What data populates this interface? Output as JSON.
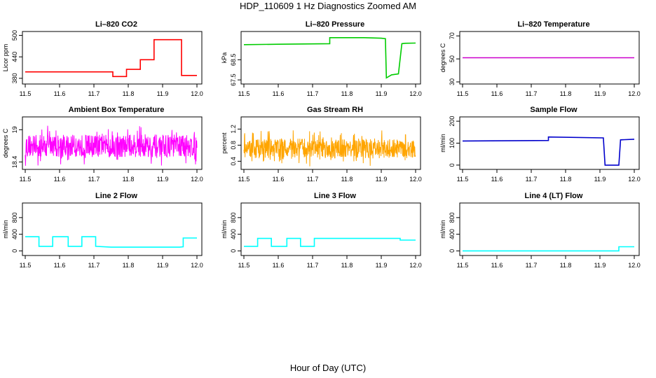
{
  "title": "HDP_110609  1 Hz Diagnostics Zoomed AM",
  "xlabel": "Hour of Day (UTC)",
  "chart_data": [
    {
      "type": "line",
      "title": "Li–820 CO2",
      "ylabel": "Licor ppm",
      "color": "#ff0000",
      "xlim": [
        11.5,
        12.0
      ],
      "ylim": [
        370,
        505
      ],
      "xticks": [
        "11.5",
        "11.6",
        "11.7",
        "11.8",
        "11.9",
        "12.0"
      ],
      "yticks": [
        380,
        440,
        500
      ],
      "series": [
        {
          "x": [
            11.5,
            11.755,
            11.755,
            11.795,
            11.795,
            11.835,
            11.835,
            11.875,
            11.875,
            11.955,
            11.955,
            12.0
          ],
          "values": [
            398,
            398,
            385,
            385,
            405,
            405,
            432,
            432,
            488,
            488,
            388,
            388
          ]
        }
      ]
    },
    {
      "type": "line",
      "title": "Li–820 Pressure",
      "ylabel": "kPa",
      "color": "#00cc00",
      "xlim": [
        11.5,
        12.0
      ],
      "ylim": [
        67.4,
        69.8
      ],
      "xticks": [
        "11.5",
        "11.6",
        "11.7",
        "11.8",
        "11.9",
        "12.0"
      ],
      "yticks": [
        67.5,
        68.5
      ],
      "series": [
        {
          "x": [
            11.5,
            11.6,
            11.75,
            11.75,
            11.85,
            11.9,
            11.912,
            11.915,
            11.93,
            11.95,
            11.96,
            11.97,
            12.0
          ],
          "values": [
            69.25,
            69.27,
            69.3,
            69.6,
            69.6,
            69.57,
            69.55,
            67.6,
            67.75,
            67.8,
            69.3,
            69.32,
            69.33
          ]
        }
      ]
    },
    {
      "type": "line",
      "title": "Li–820 Temperature",
      "ylabel": "degrees C",
      "color": "#cc00cc",
      "xlim": [
        11.5,
        12.0
      ],
      "ylim": [
        30,
        72
      ],
      "xticks": [
        "11.5",
        "11.6",
        "11.7",
        "11.8",
        "11.9",
        "12.0"
      ],
      "yticks": [
        30,
        50,
        70
      ],
      "series": [
        {
          "x": [
            11.5,
            12.0
          ],
          "values": [
            51,
            51
          ]
        }
      ]
    },
    {
      "type": "line",
      "title": "Ambient Box Temperature",
      "ylabel": "degrees C",
      "color": "#ff00ff",
      "noisy": true,
      "noise_center": 18.7,
      "noise_amp": 0.38,
      "xlim": [
        11.5,
        12.0
      ],
      "ylim": [
        18.3,
        19.2
      ],
      "xticks": [
        "11.5",
        "11.6",
        "11.7",
        "11.8",
        "11.9",
        "12.0"
      ],
      "yticks": [
        18.4,
        19.0
      ]
    },
    {
      "type": "line",
      "title": "Gas Stream RH",
      "ylabel": "percent",
      "color": "#ffa500",
      "noisy": true,
      "noise_center": 0.72,
      "noise_amp": 0.45,
      "xlim": [
        11.5,
        12.0
      ],
      "ylim": [
        0.25,
        1.45
      ],
      "xticks": [
        "11.5",
        "11.6",
        "11.7",
        "11.8",
        "11.9",
        "12.0"
      ],
      "yticks": [
        0.4,
        0.8,
        1.2
      ]
    },
    {
      "type": "line",
      "title": "Sample Flow",
      "ylabel": "ml/min",
      "color": "#0000cc",
      "xlim": [
        11.5,
        12.0
      ],
      "ylim": [
        -10,
        210
      ],
      "xticks": [
        "11.5",
        "11.6",
        "11.7",
        "11.8",
        "11.9",
        "12.0"
      ],
      "yticks": [
        0,
        100,
        200
      ],
      "series": [
        {
          "x": [
            11.5,
            11.75,
            11.75,
            11.91,
            11.915,
            11.955,
            11.96,
            12.0
          ],
          "values": [
            110,
            112,
            128,
            124,
            0,
            0,
            115,
            118
          ]
        }
      ]
    },
    {
      "type": "line",
      "title": "Line 2 Flow",
      "ylabel": "ml/min",
      "color": "#00ffff",
      "xlim": [
        11.5,
        12.0
      ],
      "ylim": [
        -60,
        1100
      ],
      "xticks": [
        "11.5",
        "11.6",
        "11.7",
        "11.8",
        "11.9",
        "12.0"
      ],
      "yticks": [
        0,
        400,
        800
      ],
      "series": [
        {
          "x": [
            11.5,
            11.54,
            11.54,
            11.58,
            11.58,
            11.625,
            11.625,
            11.665,
            11.665,
            11.705,
            11.705,
            11.75,
            11.95,
            11.96,
            11.96,
            12.0
          ],
          "values": [
            340,
            340,
            110,
            110,
            340,
            340,
            110,
            110,
            340,
            340,
            110,
            90,
            90,
            100,
            310,
            310
          ]
        }
      ]
    },
    {
      "type": "line",
      "title": "Line 3 Flow",
      "ylabel": "ml/min",
      "color": "#00ffff",
      "xlim": [
        11.5,
        12.0
      ],
      "ylim": [
        -60,
        1100
      ],
      "xticks": [
        "11.5",
        "11.6",
        "11.7",
        "11.8",
        "11.9",
        "12.0"
      ],
      "yticks": [
        0,
        400,
        800
      ],
      "series": [
        {
          "x": [
            11.5,
            11.54,
            11.54,
            11.58,
            11.58,
            11.625,
            11.625,
            11.665,
            11.665,
            11.705,
            11.705,
            11.955,
            11.955,
            12.0
          ],
          "values": [
            110,
            110,
            300,
            300,
            110,
            110,
            300,
            300,
            110,
            110,
            300,
            300,
            260,
            260
          ]
        }
      ]
    },
    {
      "type": "line",
      "title": "Line 4 (LT) Flow",
      "ylabel": "ml/min",
      "color": "#00ffff",
      "xlim": [
        11.5,
        12.0
      ],
      "ylim": [
        -60,
        1100
      ],
      "xticks": [
        "11.5",
        "11.6",
        "11.7",
        "11.8",
        "11.9",
        "12.0"
      ],
      "yticks": [
        0,
        400,
        800
      ],
      "series": [
        {
          "x": [
            11.5,
            11.955,
            11.955,
            12.0
          ],
          "values": [
            0,
            0,
            100,
            100
          ]
        }
      ]
    }
  ]
}
